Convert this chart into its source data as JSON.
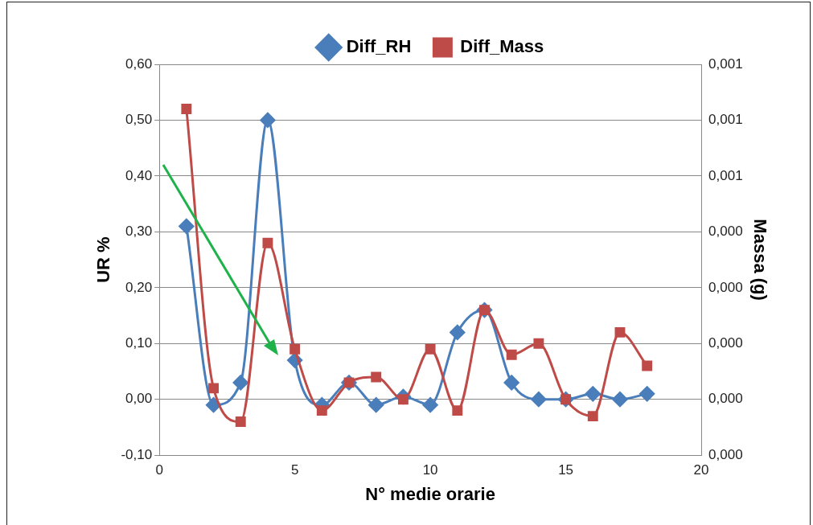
{
  "chart_data": {
    "type": "line",
    "xlabel": "N° medie orarie",
    "ylabel": "UR %",
    "y2label": "Massa (g)",
    "x": [
      1,
      2,
      3,
      4,
      5,
      6,
      7,
      8,
      9,
      10,
      11,
      12,
      13,
      14,
      15,
      16,
      17,
      18
    ],
    "series": [
      {
        "name": "Diff_RH",
        "color": "#4a7ebb",
        "marker": "diamond",
        "values": [
          0.31,
          -0.01,
          0.03,
          0.5,
          0.07,
          -0.01,
          0.03,
          -0.01,
          0.005,
          -0.01,
          0.12,
          0.16,
          0.03,
          0.0,
          0.0,
          0.01,
          0.0,
          0.01
        ]
      },
      {
        "name": "Diff_Mass",
        "color": "#be4b48",
        "marker": "square",
        "axis": "y2",
        "values": [
          0.00062,
          0.00012,
          6e-05,
          0.00038,
          0.00019,
          8e-05,
          0.00013,
          0.00014,
          0.0001,
          0.00019,
          8e-05,
          0.00026,
          0.00018,
          0.0002,
          0.0001,
          7e-05,
          0.00022,
          0.00016
        ]
      }
    ],
    "xlim": [
      0,
      20
    ],
    "xticks": [
      0,
      5,
      10,
      15,
      20
    ],
    "ylim": [
      -0.1,
      0.6
    ],
    "yticks": [
      {
        "value": -0.1,
        "label": "-0,10"
      },
      {
        "value": 0,
        "label": "0,00"
      },
      {
        "value": 0.1,
        "label": "0,10"
      },
      {
        "value": 0.2,
        "label": "0,20"
      },
      {
        "value": 0.3,
        "label": "0,30"
      },
      {
        "value": 0.4,
        "label": "0,40"
      },
      {
        "value": 0.5,
        "label": "0,50"
      },
      {
        "value": 0.6,
        "label": "0,60"
      }
    ],
    "y2lim": [
      0,
      0.0007
    ],
    "y2ticks": [
      {
        "value": 0,
        "label": "0,000"
      },
      {
        "value": 0.0001,
        "label": "0,000"
      },
      {
        "value": 0.0002,
        "label": "0,000"
      },
      {
        "value": 0.0003,
        "label": "0,000"
      },
      {
        "value": 0.0004,
        "label": "0,000"
      },
      {
        "value": 0.0005,
        "label": "0,001"
      },
      {
        "value": 0.0006,
        "label": "0,001"
      },
      {
        "value": 0.0007,
        "label": "0,001"
      }
    ],
    "grid": "y",
    "legend": "top"
  }
}
